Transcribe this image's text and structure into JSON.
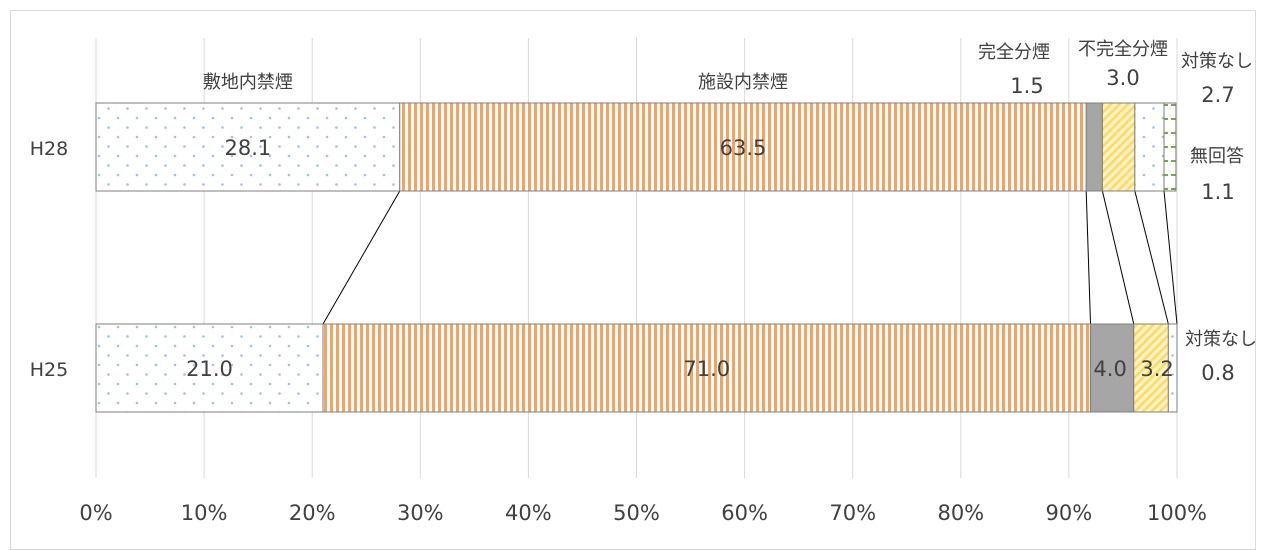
{
  "chart_data": {
    "type": "bar",
    "orientation": "horizontal",
    "stacked": true,
    "percent_scale": true,
    "categories": [
      "H28",
      "H25"
    ],
    "series": [
      {
        "name": "敷地内禁煙",
        "values": [
          28.1,
          21.0
        ],
        "value_labels": [
          "28.1",
          "21.0"
        ],
        "color": "#9dc3e6",
        "pattern": "dots"
      },
      {
        "name": "施設内禁煙",
        "values": [
          63.5,
          71.0
        ],
        "value_labels": [
          "63.5",
          "71.0"
        ],
        "color": "#f4a460",
        "pattern": "vertical-stripes"
      },
      {
        "name": "完全分煙",
        "values": [
          1.5,
          4.0
        ],
        "value_labels": [
          "1.5",
          "4.0"
        ],
        "color": "#a6a6a6",
        "pattern": "solid"
      },
      {
        "name": "不完全分煙",
        "values": [
          3.0,
          3.2
        ],
        "value_labels": [
          "3.0",
          "3.2"
        ],
        "color": "#ffd966",
        "pattern": "diagonal"
      },
      {
        "name": "対策なし",
        "values": [
          2.7,
          0.8
        ],
        "value_labels": [
          "2.7",
          "0.8"
        ],
        "color": "#9dc3e6",
        "pattern": "dots"
      },
      {
        "name": "無回答",
        "values": [
          1.1,
          0.0
        ],
        "value_labels": [
          "1.1",
          ""
        ],
        "color": "#70ad47",
        "pattern": "dashes"
      }
    ],
    "x_ticks": [
      "0%",
      "10%",
      "20%",
      "30%",
      "40%",
      "50%",
      "60%",
      "70%",
      "80%",
      "90%",
      "100%"
    ],
    "xlim": [
      0,
      100
    ],
    "grid": true,
    "connector_lines": true,
    "title": "",
    "xlabel": "",
    "ylabel": ""
  }
}
